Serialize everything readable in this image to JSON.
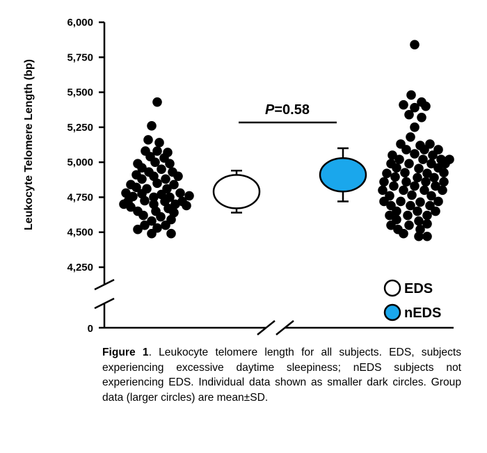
{
  "chart_data": {
    "type": "scatter",
    "ylabel": "Leukocyte Telomere Length (bp)",
    "ylim": [
      4250,
      6000
    ],
    "yticks": [
      6000,
      5750,
      5500,
      5250,
      5000,
      4750,
      4500,
      4250
    ],
    "ytick_labels": [
      "6,000",
      "5,750",
      "5,500",
      "5,250",
      "5,000",
      "4,750",
      "4,500",
      "4,250"
    ],
    "zero_label": "0",
    "axis_break": true,
    "annotation": {
      "p_symbol": "P",
      "p_value_text": "=0.58"
    },
    "legend": [
      {
        "name": "EDS",
        "fill": "#ffffff"
      },
      {
        "name": "nEDS",
        "fill": "#1aa7ec"
      }
    ],
    "groups": [
      {
        "name": "EDS",
        "summary": {
          "mean": 4790,
          "sd": 150,
          "fill": "#ffffff"
        },
        "points": [
          {
            "off": 0,
            "y": 5430
          },
          {
            "off": -8,
            "y": 5260
          },
          {
            "off": -13,
            "y": 5160
          },
          {
            "off": 3,
            "y": 5140
          },
          {
            "off": -17,
            "y": 5080
          },
          {
            "off": 0,
            "y": 5080
          },
          {
            "off": 15,
            "y": 5070
          },
          {
            "off": -10,
            "y": 5040
          },
          {
            "off": 10,
            "y": 5030
          },
          {
            "off": -28,
            "y": 4990
          },
          {
            "off": -3,
            "y": 5000
          },
          {
            "off": 18,
            "y": 4990
          },
          {
            "off": -22,
            "y": 4960
          },
          {
            "off": 6,
            "y": 4950
          },
          {
            "off": -12,
            "y": 4930
          },
          {
            "off": 22,
            "y": 4930
          },
          {
            "off": -30,
            "y": 4910
          },
          {
            "off": -5,
            "y": 4900
          },
          {
            "off": 30,
            "y": 4900
          },
          {
            "off": -22,
            "y": 4880
          },
          {
            "off": 12,
            "y": 4880
          },
          {
            "off": -38,
            "y": 4840
          },
          {
            "off": 0,
            "y": 4850
          },
          {
            "off": 24,
            "y": 4840
          },
          {
            "off": -30,
            "y": 4820
          },
          {
            "off": -15,
            "y": 4810
          },
          {
            "off": 14,
            "y": 4810
          },
          {
            "off": -45,
            "y": 4780
          },
          {
            "off": -22,
            "y": 4775
          },
          {
            "off": 6,
            "y": 4770
          },
          {
            "off": 33,
            "y": 4780
          },
          {
            "off": -35,
            "y": 4755
          },
          {
            "off": -5,
            "y": 4750
          },
          {
            "off": 18,
            "y": 4750
          },
          {
            "off": 46,
            "y": 4760
          },
          {
            "off": -42,
            "y": 4720
          },
          {
            "off": -18,
            "y": 4725
          },
          {
            "off": 11,
            "y": 4720
          },
          {
            "off": 36,
            "y": 4720
          },
          {
            "off": -48,
            "y": 4700
          },
          {
            "off": -5,
            "y": 4700
          },
          {
            "off": 26,
            "y": 4700
          },
          {
            "off": -38,
            "y": 4680
          },
          {
            "off": 16,
            "y": 4670
          },
          {
            "off": 42,
            "y": 4690
          },
          {
            "off": -28,
            "y": 4650
          },
          {
            "off": -2,
            "y": 4650
          },
          {
            "off": 24,
            "y": 4640
          },
          {
            "off": -20,
            "y": 4620
          },
          {
            "off": 5,
            "y": 4610
          },
          {
            "off": -8,
            "y": 4580
          },
          {
            "off": 20,
            "y": 4590
          },
          {
            "off": -18,
            "y": 4550
          },
          {
            "off": 12,
            "y": 4550
          },
          {
            "off": -28,
            "y": 4520
          },
          {
            "off": 0,
            "y": 4530
          },
          {
            "off": -8,
            "y": 4490
          },
          {
            "off": 20,
            "y": 4490
          }
        ]
      },
      {
        "name": "nEDS",
        "summary": {
          "mean": 4910,
          "sd": 190,
          "fill": "#1aa7ec"
        },
        "points": [
          {
            "off": 0,
            "y": 5840
          },
          {
            "off": -5,
            "y": 5480
          },
          {
            "off": 10,
            "y": 5430
          },
          {
            "off": -16,
            "y": 5410
          },
          {
            "off": 0,
            "y": 5390
          },
          {
            "off": 16,
            "y": 5400
          },
          {
            "off": -8,
            "y": 5340
          },
          {
            "off": 10,
            "y": 5320
          },
          {
            "off": 0,
            "y": 5250
          },
          {
            "off": -6,
            "y": 5180
          },
          {
            "off": -20,
            "y": 5130
          },
          {
            "off": 8,
            "y": 5120
          },
          {
            "off": 22,
            "y": 5130
          },
          {
            "off": -12,
            "y": 5090
          },
          {
            "off": 14,
            "y": 5090
          },
          {
            "off": 34,
            "y": 5090
          },
          {
            "off": -32,
            "y": 5050
          },
          {
            "off": 0,
            "y": 5060
          },
          {
            "off": 26,
            "y": 5050
          },
          {
            "off": -22,
            "y": 5020
          },
          {
            "off": 12,
            "y": 5020
          },
          {
            "off": 38,
            "y": 5020
          },
          {
            "off": 50,
            "y": 5020
          },
          {
            "off": -34,
            "y": 4990
          },
          {
            "off": -8,
            "y": 4990
          },
          {
            "off": 24,
            "y": 4990
          },
          {
            "off": 44,
            "y": 4990
          },
          {
            "off": -26,
            "y": 4960
          },
          {
            "off": 6,
            "y": 4955
          },
          {
            "off": 34,
            "y": 4960
          },
          {
            "off": -40,
            "y": 4920
          },
          {
            "off": -14,
            "y": 4925
          },
          {
            "off": 18,
            "y": 4920
          },
          {
            "off": 42,
            "y": 4925
          },
          {
            "off": -28,
            "y": 4895
          },
          {
            "off": 4,
            "y": 4890
          },
          {
            "off": 28,
            "y": 4890
          },
          {
            "off": -44,
            "y": 4860
          },
          {
            "off": -12,
            "y": 4860
          },
          {
            "off": 16,
            "y": 4860
          },
          {
            "off": 42,
            "y": 4860
          },
          {
            "off": -30,
            "y": 4830
          },
          {
            "off": 0,
            "y": 4830
          },
          {
            "off": 30,
            "y": 4830
          },
          {
            "off": -46,
            "y": 4800
          },
          {
            "off": -16,
            "y": 4800
          },
          {
            "off": 14,
            "y": 4800
          },
          {
            "off": 40,
            "y": 4800
          },
          {
            "off": -36,
            "y": 4760
          },
          {
            "off": -4,
            "y": 4765
          },
          {
            "off": 24,
            "y": 4760
          },
          {
            "off": -44,
            "y": 4720
          },
          {
            "off": -20,
            "y": 4720
          },
          {
            "off": 8,
            "y": 4715
          },
          {
            "off": 34,
            "y": 4720
          },
          {
            "off": -34,
            "y": 4690
          },
          {
            "off": -6,
            "y": 4690
          },
          {
            "off": 22,
            "y": 4690
          },
          {
            "off": -26,
            "y": 4650
          },
          {
            "off": 4,
            "y": 4650
          },
          {
            "off": 30,
            "y": 4650
          },
          {
            "off": -36,
            "y": 4620
          },
          {
            "off": -10,
            "y": 4620
          },
          {
            "off": 18,
            "y": 4620
          },
          {
            "off": -26,
            "y": 4590
          },
          {
            "off": 6,
            "y": 4580
          },
          {
            "off": -34,
            "y": 4550
          },
          {
            "off": -8,
            "y": 4550
          },
          {
            "off": 18,
            "y": 4560
          },
          {
            "off": -24,
            "y": 4520
          },
          {
            "off": 8,
            "y": 4520
          },
          {
            "off": -16,
            "y": 4490
          },
          {
            "off": 6,
            "y": 4470
          },
          {
            "off": 18,
            "y": 4470
          }
        ]
      }
    ]
  },
  "caption": {
    "label": "Figure 1",
    "text": ". Leukocyte telomere length for all subjects. EDS, subjects experiencing excessive daytime sleepiness; nEDS subjects not experiencing EDS. Individual data shown as smaller dark circles. Group data (larger circles) are mean±SD."
  }
}
